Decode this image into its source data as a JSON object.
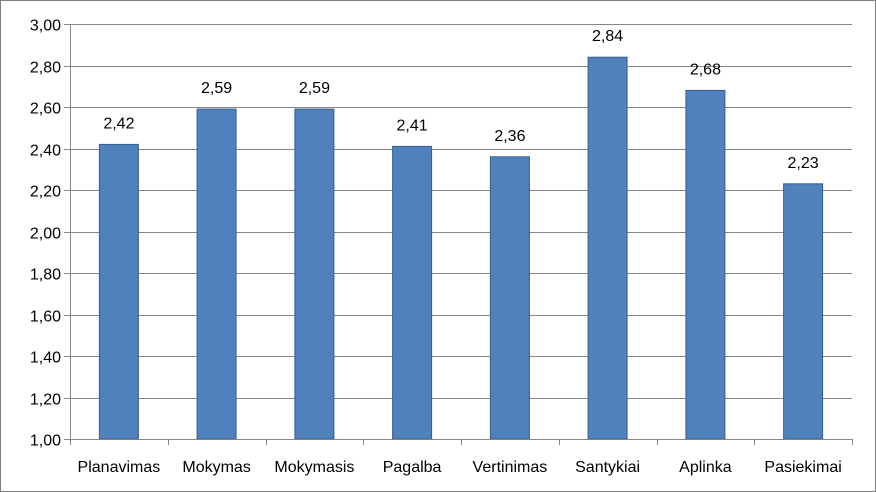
{
  "chart_data": {
    "type": "bar",
    "categories": [
      "Planavimas",
      "Mokymas",
      "Mokymasis",
      "Pagalba",
      "Vertinimas",
      "Santykiai",
      "Aplinka",
      "Pasiekimai"
    ],
    "values": [
      2.42,
      2.59,
      2.59,
      2.41,
      2.36,
      2.84,
      2.68,
      2.23
    ],
    "data_labels": [
      "2,42",
      "2,59",
      "2,59",
      "2,41",
      "2,36",
      "2,84",
      "2,68",
      "2,23"
    ],
    "y_ticks": [
      "1,00",
      "1,20",
      "1,40",
      "1,60",
      "1,80",
      "2,00",
      "2,20",
      "2,40",
      "2,60",
      "2,80",
      "3,00"
    ],
    "ylim": [
      1.0,
      3.0
    ],
    "grid": true,
    "legend": "none",
    "colors": {
      "bar_fill": "#4f81bd",
      "bar_stroke": "#385d8a",
      "grid": "#868686",
      "axis": "#868686"
    }
  }
}
